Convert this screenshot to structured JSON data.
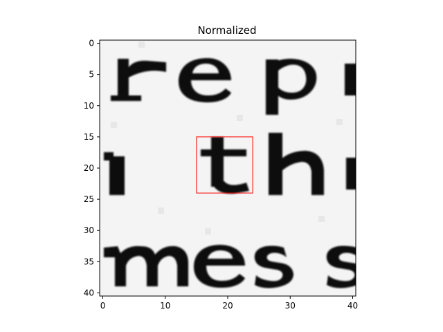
{
  "title": "Normalized",
  "image": {
    "rows": 41,
    "cols": 41,
    "text_lines": [
      {
        "text": "rep",
        "row_center": 7
      },
      {
        "text": "th",
        "row_center": 20
      },
      {
        "text": "mess",
        "row_center": 37
      }
    ],
    "colormap": "gray"
  },
  "axes": {
    "x_ticks": [
      "0",
      "10",
      "20",
      "30",
      "40"
    ],
    "x_tick_values": [
      0,
      10,
      20,
      30,
      40
    ],
    "y_ticks": [
      "0",
      "5",
      "10",
      "15",
      "20",
      "25",
      "30",
      "35",
      "40"
    ],
    "y_tick_values": [
      0,
      5,
      10,
      15,
      20,
      25,
      30,
      35,
      40
    ],
    "xlim": [
      -0.5,
      40.5
    ],
    "ylim": [
      40.5,
      -0.5
    ]
  },
  "highlight_box": {
    "x_range": [
      15,
      24
    ],
    "y_range": [
      15,
      24
    ],
    "color": "#ff0000"
  }
}
